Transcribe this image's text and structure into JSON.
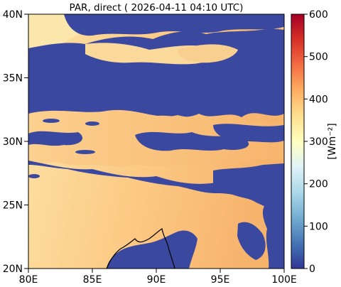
{
  "title": "PAR, direct ( 2026-04-11 04:10 UTC)",
  "map": {
    "lon_range": [
      80,
      100
    ],
    "lat_range": [
      20,
      40
    ],
    "lon_ticks": [
      80,
      85,
      90,
      95,
      100
    ],
    "lat_ticks": [
      20,
      25,
      30,
      35,
      40
    ],
    "lon_tick_labels": [
      "80E",
      "85E",
      "90E",
      "95E",
      "100E"
    ],
    "lat_tick_labels": [
      "20N",
      "25N",
      "30N",
      "35N",
      "40N"
    ]
  },
  "colorbar": {
    "label": "[Wm⁻²]",
    "range": [
      0,
      600
    ],
    "ticks": [
      0,
      100,
      200,
      300,
      400,
      500,
      600
    ],
    "tick_labels": [
      "0",
      "100",
      "200",
      "300",
      "400",
      "500",
      "600"
    ],
    "colormap": "RdYlBu_r",
    "colors": [
      "#313695",
      "#4575b4",
      "#74add1",
      "#abd9e9",
      "#e0f3f8",
      "#ffffbf",
      "#fee090",
      "#fdae61",
      "#f46d43",
      "#d73027",
      "#a50026"
    ]
  },
  "field_colors": {
    "cloud": "#3a48a0",
    "clear_low": "#fbe0a3",
    "clear_high": "#f4aa62",
    "coastline": "#000000"
  }
}
